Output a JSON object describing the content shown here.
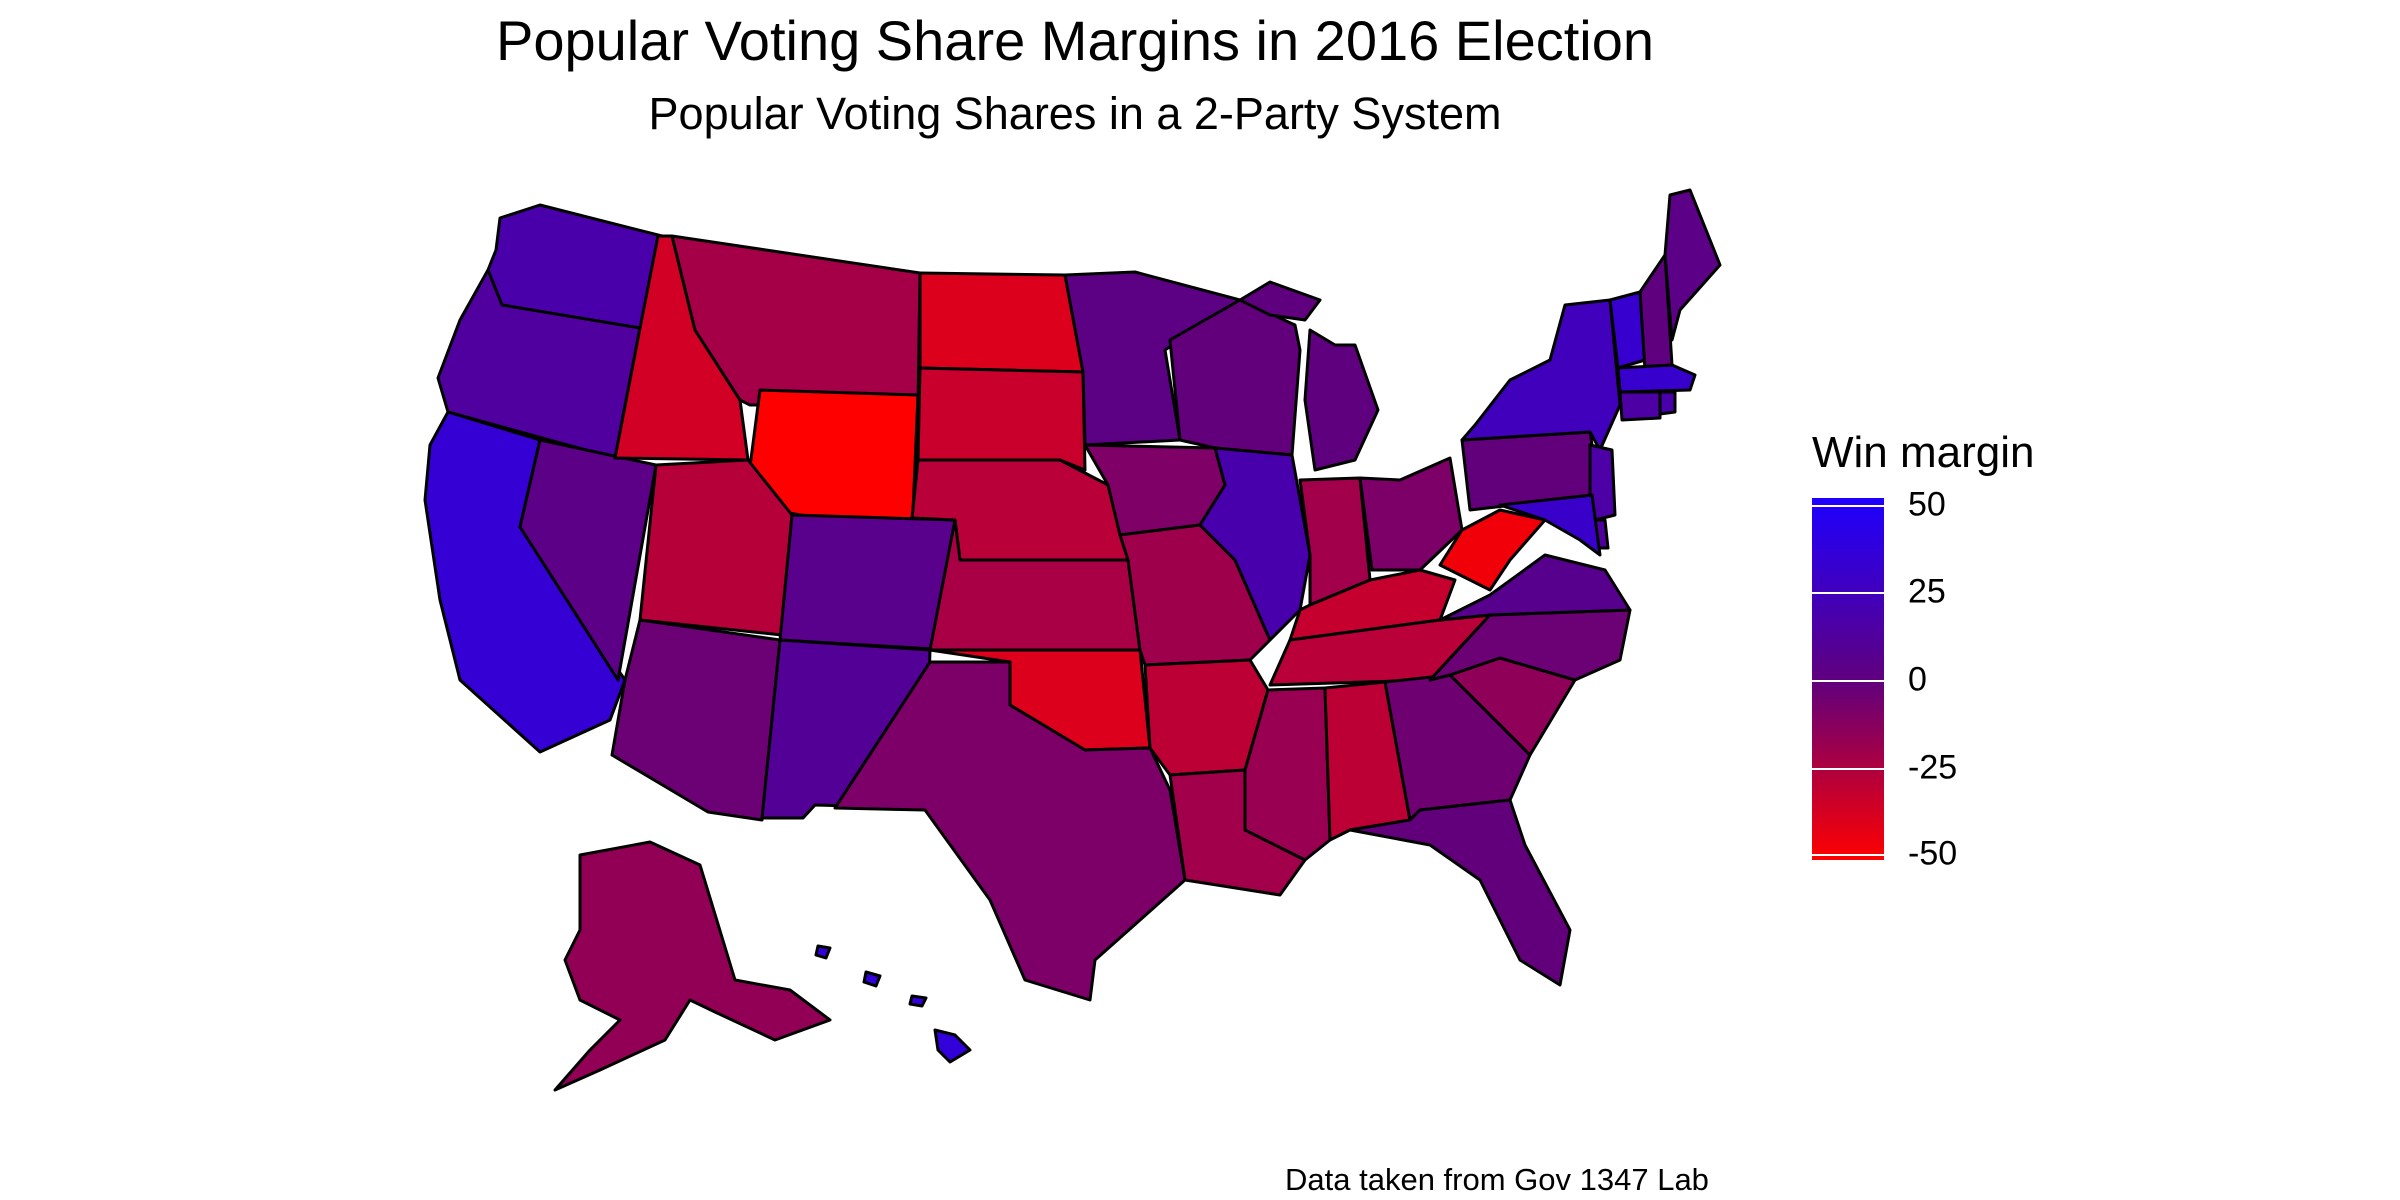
{
  "title": "Popular Voting Share Margins in 2016 Election",
  "subtitle": "Popular Voting Shares in a 2-Party System",
  "caption": "Data taken from Gov 1347 Lab",
  "legend": {
    "title": "Win margin",
    "ticks": [
      "50",
      "25",
      "0",
      "-25",
      "-50"
    ],
    "colors": {
      "high": "#1e00ff",
      "mid": "#5f007f",
      "low": "#ff0000"
    }
  },
  "chart_data": {
    "type": "choropleth",
    "region": "United States",
    "variable": "Win margin",
    "range": [
      -50,
      50
    ],
    "values": {
      "WA": 17,
      "OR": 12,
      "CA": 33,
      "NV": 3,
      "ID": -36,
      "MT": -22,
      "WY": -52,
      "UT": -27,
      "CO": 5,
      "AZ": -4,
      "NM": 9,
      "ND": -39,
      "SD": -33,
      "NE": -28,
      "KS": -23,
      "OK": -39,
      "TX": -9,
      "MN": 2,
      "IA": -10,
      "MO": -20,
      "AR": -29,
      "LA": -21,
      "WI": -1,
      "IL": 18,
      "MI": 0,
      "IN": -21,
      "OH": -9,
      "KY": -32,
      "TN": -28,
      "MS": -18,
      "AL": -29,
      "GA": -5,
      "FL": -1,
      "SC": -15,
      "NC": -4,
      "VA": 6,
      "WV": -46,
      "PA": -1,
      "NY": 24,
      "VT": 31,
      "NH": 0,
      "ME": 3,
      "MA": 30,
      "RI": 17,
      "CT": 14,
      "NJ": 15,
      "DE": 12,
      "MD": 29,
      "AK": -16,
      "HI": 35
    }
  }
}
